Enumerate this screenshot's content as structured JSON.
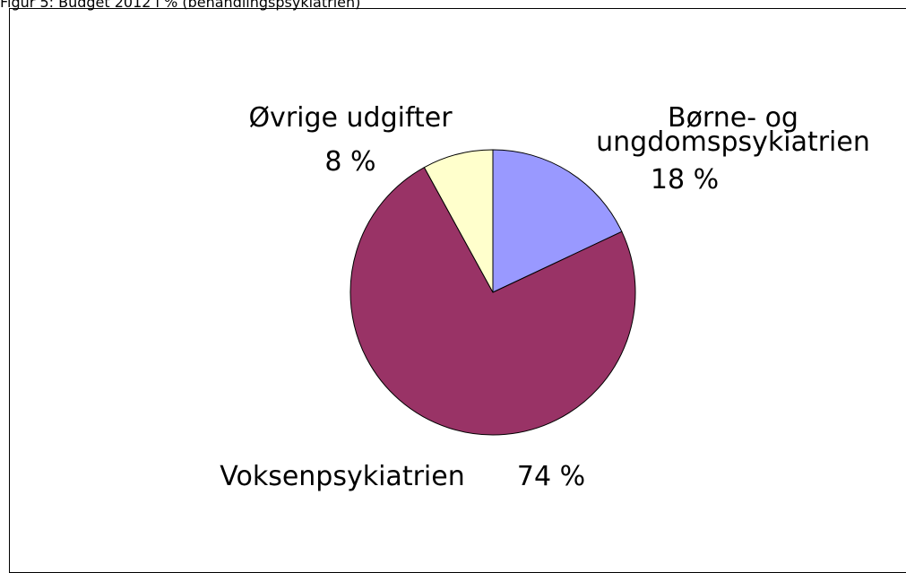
{
  "chart_data": {
    "type": "pie",
    "title": "Figur 5: Budget 2012 i % (behandlingspsykiatrien)",
    "categories": [
      "Børne- og ungdomspsykiatrien",
      "Voksenpsykiatrien",
      "Øvrige udgifter"
    ],
    "values": [
      18,
      74,
      8
    ],
    "value_labels": [
      "18 %",
      "74 %",
      "8 %"
    ],
    "colors": [
      "#9999ff",
      "#993366",
      "#ffffcc"
    ]
  }
}
